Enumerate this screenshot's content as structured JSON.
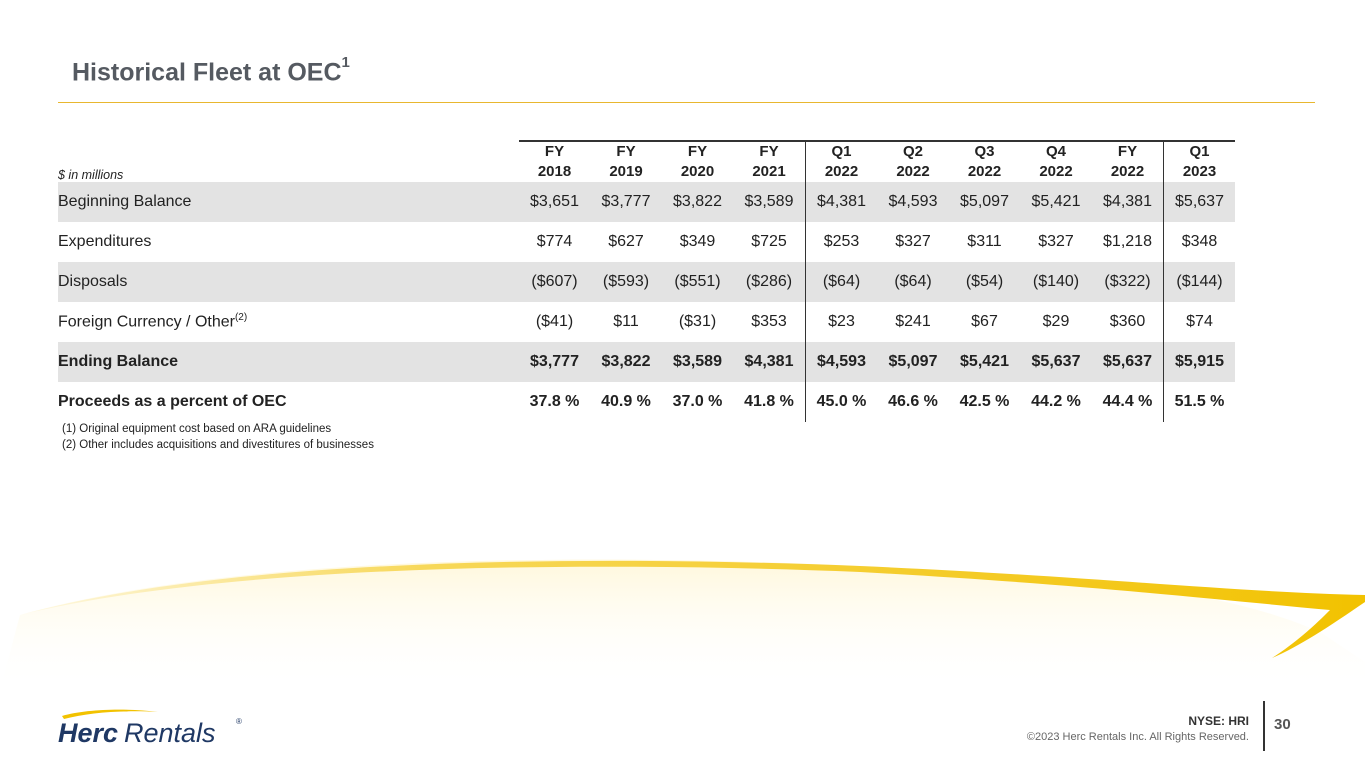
{
  "title": {
    "text": "Historical Fleet at OEC",
    "superscript": "1"
  },
  "table": {
    "units_label": "$ in millions",
    "columns": [
      {
        "line1": "FY",
        "line2": "2018"
      },
      {
        "line1": "FY",
        "line2": "2019"
      },
      {
        "line1": "FY",
        "line2": "2020"
      },
      {
        "line1": "FY",
        "line2": "2021"
      },
      {
        "line1": "Q1",
        "line2": "2022"
      },
      {
        "line1": "Q2",
        "line2": "2022"
      },
      {
        "line1": "Q3",
        "line2": "2022"
      },
      {
        "line1": "Q4",
        "line2": "2022"
      },
      {
        "line1": "FY",
        "line2": "2022"
      },
      {
        "line1": "Q1",
        "line2": "2023"
      }
    ],
    "rows": [
      {
        "label": "Beginning Balance",
        "note": "",
        "values": [
          "$3,651",
          "$3,777",
          "$3,822",
          "$3,589",
          "$4,381",
          "$4,593",
          "$5,097",
          "$5,421",
          "$4,381",
          "$5,637"
        ]
      },
      {
        "label": "Expenditures",
        "note": "",
        "values": [
          "$774",
          "$627",
          "$349",
          "$725",
          "$253",
          "$327",
          "$311",
          "$327",
          "$1,218",
          "$348"
        ]
      },
      {
        "label": "Disposals",
        "note": "",
        "values": [
          "($607)",
          "($593)",
          "($551)",
          "($286)",
          "($64)",
          "($64)",
          "($54)",
          "($140)",
          "($322)",
          "($144)"
        ]
      },
      {
        "label": "Foreign Currency / Other",
        "note": "(2)",
        "values": [
          "($41)",
          "$11",
          "($31)",
          "$353",
          "$23",
          "$241",
          "$67",
          "$29",
          "$360",
          "$74"
        ]
      },
      {
        "label": "Ending Balance",
        "note": "",
        "values": [
          "$3,777",
          "$3,822",
          "$3,589",
          "$4,381",
          "$4,593",
          "$5,097",
          "$5,421",
          "$5,637",
          "$5,637",
          "$5,915"
        ]
      },
      {
        "label": "Proceeds as a percent of OEC",
        "note": "",
        "values": [
          "37.8 %",
          "40.9 %",
          "37.0 %",
          "41.8 %",
          "45.0 %",
          "46.6 %",
          "42.5 %",
          "44.2 %",
          "44.4 %",
          "51.5 %"
        ]
      }
    ]
  },
  "footnotes": [
    "(1)  Original equipment cost based on ARA guidelines",
    "(2)  Other includes acquisitions and divestitures of businesses"
  ],
  "footer": {
    "logo_bold": "Herc",
    "logo_light": "Rentals",
    "logo_mark": "®",
    "ticker": "NYSE: HRI",
    "copyright": "©2023 Herc Rentals Inc.  All Rights Reserved.",
    "page_number": "30"
  },
  "colors": {
    "accent": "#f2c200",
    "title": "#555a61",
    "shade": "#e3e3e3",
    "logo": "#1f3864"
  }
}
